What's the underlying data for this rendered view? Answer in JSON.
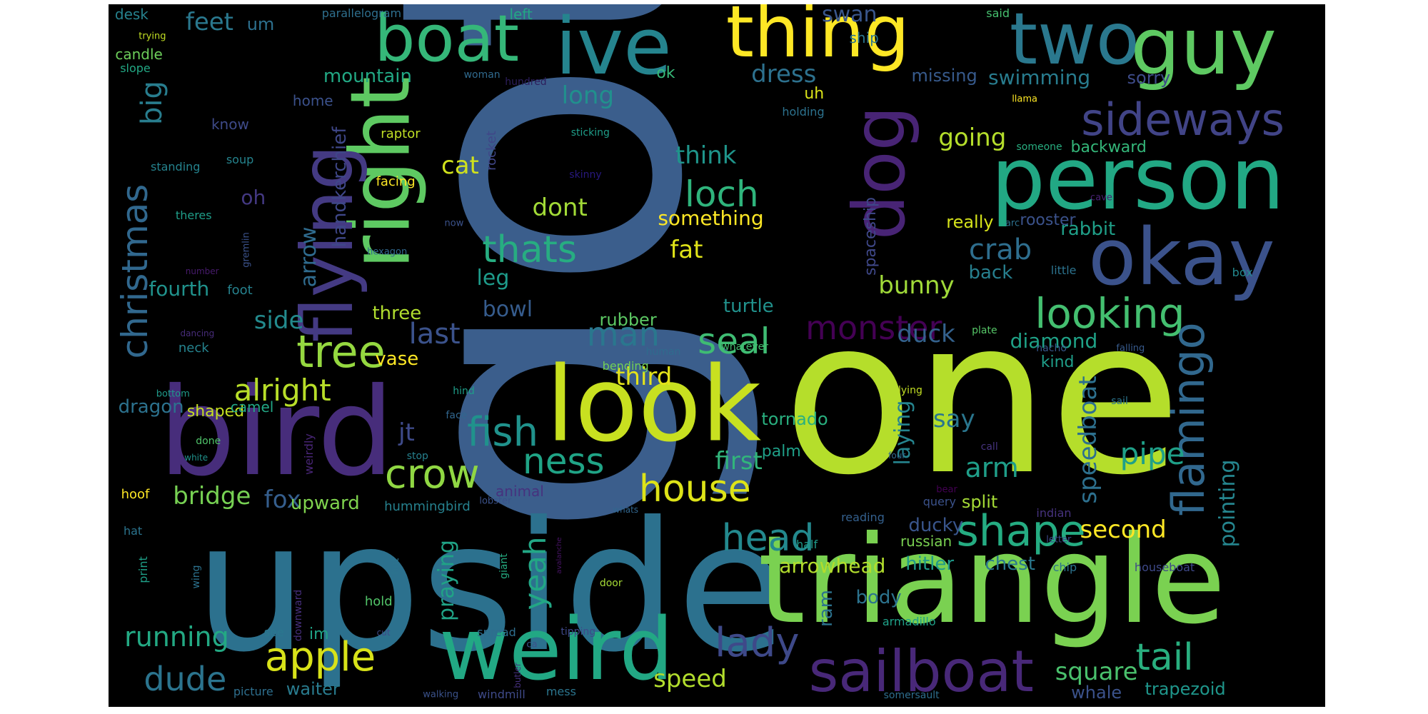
{
  "word_cloud": {
    "background": "#000000",
    "palette": [
      "#440154",
      "#472d7b",
      "#3b528b",
      "#2c728e",
      "#21918c",
      "#28ae80",
      "#5ec962",
      "#addc30",
      "#fde725"
    ],
    "words": [
      {
        "text": "got",
        "color": "#3b5e8c"
      },
      {
        "text": "one",
        "color": "#b5de2b"
      },
      {
        "text": "upside",
        "color": "#2c718e"
      },
      {
        "text": "triangle",
        "color": "#7ad151"
      },
      {
        "text": "bird",
        "color": "#472d7b"
      },
      {
        "text": "look",
        "color": "#c8e020"
      },
      {
        "text": "weird",
        "color": "#22a884"
      },
      {
        "text": "person",
        "color": "#22a884"
      },
      {
        "text": "two",
        "color": "#2a788e"
      },
      {
        "text": "guy",
        "color": "#5ec962"
      },
      {
        "text": "okay",
        "color": "#3b528b"
      },
      {
        "text": "boat",
        "color": "#35b779"
      },
      {
        "text": "ive",
        "color": "#25848e"
      },
      {
        "text": "thing",
        "color": "#fde725"
      },
      {
        "text": "right",
        "color": "#5ec962"
      },
      {
        "text": "flying",
        "color": "#443a83"
      },
      {
        "text": "dog",
        "color": "#482475"
      },
      {
        "text": "sailboat",
        "color": "#482878"
      },
      {
        "text": "sideways",
        "color": "#414487"
      },
      {
        "text": "flamingo",
        "color": "#31688e"
      },
      {
        "text": "looking",
        "color": "#44bf70"
      },
      {
        "text": "shape",
        "color": "#25ac82"
      },
      {
        "text": "monster",
        "color": "#440154"
      },
      {
        "text": "tree",
        "color": "#95d840"
      },
      {
        "text": "christmas",
        "color": "#31688e"
      },
      {
        "text": "crow",
        "color": "#90d743"
      },
      {
        "text": "fish",
        "color": "#20928c"
      },
      {
        "text": "apple",
        "color": "#d8e219"
      },
      {
        "text": "house",
        "color": "#dde318"
      },
      {
        "text": "loch",
        "color": "#2fb47c"
      },
      {
        "text": "thats",
        "color": "#27ad81"
      },
      {
        "text": "seal",
        "color": "#3fbc73"
      },
      {
        "text": "lady",
        "color": "#3e4989"
      },
      {
        "text": "head",
        "color": "#23898e"
      },
      {
        "text": "tail",
        "color": "#29af7f"
      },
      {
        "text": "ness",
        "color": "#20a486"
      },
      {
        "text": "man",
        "color": "#2a778e"
      },
      {
        "text": "dude",
        "color": "#2b748e"
      },
      {
        "text": "speedboat",
        "color": "#2d708e"
      },
      {
        "text": "alright",
        "color": "#b8de29"
      },
      {
        "text": "running",
        "color": "#23a983"
      },
      {
        "text": "yeah",
        "color": "#22a785"
      },
      {
        "text": "pipe",
        "color": "#1fa088"
      },
      {
        "text": "square",
        "color": "#4ac16d"
      },
      {
        "text": "big",
        "color": "#287d8e"
      },
      {
        "text": "dress",
        "color": "#2d718e"
      },
      {
        "text": "cat",
        "color": "#d0e11c"
      },
      {
        "text": "crab",
        "color": "#2e6e8e"
      },
      {
        "text": "speed",
        "color": "#b2dd2d"
      },
      {
        "text": "fat",
        "color": "#dfe318"
      },
      {
        "text": "duck",
        "color": "#34618d"
      },
      {
        "text": "arm",
        "color": "#1f9e89"
      },
      {
        "text": "second",
        "color": "#fde725"
      },
      {
        "text": "pointing",
        "color": "#25858e"
      },
      {
        "text": "last",
        "color": "#3b528b"
      },
      {
        "text": "bridge",
        "color": "#77d153"
      },
      {
        "text": "going",
        "color": "#b5de2b"
      },
      {
        "text": "feet",
        "color": "#2a788e"
      },
      {
        "text": "swan",
        "color": "#39568c"
      },
      {
        "text": "laying",
        "color": "#25848e"
      },
      {
        "text": "praying",
        "color": "#20a386"
      },
      {
        "text": "jt",
        "color": "#3e4a89"
      },
      {
        "text": "long",
        "color": "#21908d"
      },
      {
        "text": "first",
        "color": "#31b57b"
      },
      {
        "text": "third",
        "color": "#e5e419"
      },
      {
        "text": "dont",
        "color": "#a2da37"
      },
      {
        "text": "think",
        "color": "#1f958b"
      },
      {
        "text": "side",
        "color": "#238a8d"
      },
      {
        "text": "fox",
        "color": "#355e8d"
      },
      {
        "text": "bunny",
        "color": "#a0da39"
      },
      {
        "text": "bowl",
        "color": "#365c8d"
      },
      {
        "text": "swimming",
        "color": "#287c8e"
      },
      {
        "text": "arrowhead",
        "color": "#b2dd2d"
      },
      {
        "text": "say",
        "color": "#2a768e"
      },
      {
        "text": "diamond",
        "color": "#1fa287"
      },
      {
        "text": "fourth",
        "color": "#20928c"
      },
      {
        "text": "arrow",
        "color": "#2f6b8e"
      },
      {
        "text": "leg",
        "color": "#1e9b8a"
      },
      {
        "text": "three",
        "color": "#b0dd2f"
      },
      {
        "text": "something",
        "color": "#fde725"
      },
      {
        "text": "turtle",
        "color": "#21918c"
      },
      {
        "text": "oh",
        "color": "#443983"
      },
      {
        "text": "mountain",
        "color": "#22a884"
      },
      {
        "text": "back",
        "color": "#277f8e"
      },
      {
        "text": "rabbit",
        "color": "#1f9f88"
      },
      {
        "text": "dragon",
        "color": "#2c728e"
      },
      {
        "text": "vase",
        "color": "#fde725"
      },
      {
        "text": "upward",
        "color": "#7fd34e"
      },
      {
        "text": "body",
        "color": "#2c738e"
      },
      {
        "text": "handkerchief",
        "color": "#3f4788"
      },
      {
        "text": "rubber",
        "color": "#5cc863"
      },
      {
        "text": "tornado",
        "color": "#29af7f"
      },
      {
        "text": "chest",
        "color": "#2a788e"
      },
      {
        "text": "hitler",
        "color": "#1f9a8a"
      },
      {
        "text": "really",
        "color": "#d5e21a"
      },
      {
        "text": "split",
        "color": "#a5db36"
      },
      {
        "text": "whale",
        "color": "#3b528b"
      },
      {
        "text": "trapezoid",
        "color": "#1f968b"
      },
      {
        "text": "waiter",
        "color": "#297b8e"
      },
      {
        "text": "sorry",
        "color": "#3e4c8a"
      },
      {
        "text": "missing",
        "color": "#375a8c"
      },
      {
        "text": "ram",
        "color": "#2c728e"
      },
      {
        "text": "ducky",
        "color": "#39558c"
      },
      {
        "text": "palm",
        "color": "#1fa088"
      },
      {
        "text": "shaped",
        "color": "#c5e021"
      },
      {
        "text": "kind",
        "color": "#1f9e89"
      },
      {
        "text": "uh",
        "color": "#dae319"
      },
      {
        "text": "ok",
        "color": "#37b878"
      },
      {
        "text": "backward",
        "color": "#34b679"
      },
      {
        "text": "um",
        "color": "#2d708e"
      },
      {
        "text": "spaceship",
        "color": "#3f4889"
      },
      {
        "text": "rooster",
        "color": "#3b528b"
      },
      {
        "text": "im",
        "color": "#20a486"
      },
      {
        "text": "russian",
        "color": "#7ad151"
      },
      {
        "text": "camel",
        "color": "#22a785"
      },
      {
        "text": "know",
        "color": "#3e4a89"
      },
      {
        "text": "home",
        "color": "#3b518b"
      },
      {
        "text": "candle",
        "color": "#6ccd5a"
      },
      {
        "text": "desk",
        "color": "#26828e"
      },
      {
        "text": "left",
        "color": "#22a884"
      },
      {
        "text": "ship",
        "color": "#2b758e"
      },
      {
        "text": "hummingbird",
        "color": "#26818e"
      },
      {
        "text": "hoof",
        "color": "#fde725"
      },
      {
        "text": "facing",
        "color": "#fde725"
      },
      {
        "text": "raptor",
        "color": "#c0df25"
      },
      {
        "text": "soup",
        "color": "#25848e"
      },
      {
        "text": "standing",
        "color": "#25838e"
      },
      {
        "text": "theres",
        "color": "#1f9e89"
      },
      {
        "text": "foot",
        "color": "#26828e"
      },
      {
        "text": "neck",
        "color": "#25838e"
      },
      {
        "text": "parallelogram",
        "color": "#2e6f8e"
      },
      {
        "text": "slope",
        "color": "#22a884"
      },
      {
        "text": "trying",
        "color": "#c2df23"
      },
      {
        "text": "said",
        "color": "#46c06f"
      },
      {
        "text": "woman",
        "color": "#306a8e"
      },
      {
        "text": "hundred",
        "color": "#2d1e5c"
      },
      {
        "text": "llama",
        "color": "#fde725"
      },
      {
        "text": "sticking",
        "color": "#1f9e89"
      },
      {
        "text": "someone",
        "color": "#28ae80"
      },
      {
        "text": "holding",
        "color": "#2c728e"
      },
      {
        "text": "skinny",
        "color": "#27187e"
      },
      {
        "text": "rocket",
        "color": "#404688"
      },
      {
        "text": "now",
        "color": "#3b528b"
      },
      {
        "text": "cave",
        "color": "#482173"
      },
      {
        "text": "hexagon",
        "color": "#31688e"
      },
      {
        "text": "arc",
        "color": "#2d718e"
      },
      {
        "text": "little",
        "color": "#2c738e"
      },
      {
        "text": "box",
        "color": "#23888e"
      },
      {
        "text": "gremlin",
        "color": "#3b528b"
      },
      {
        "text": "number",
        "color": "#481b6d"
      },
      {
        "text": "dancing",
        "color": "#472c7a"
      },
      {
        "text": "human",
        "color": "#2f6b8e"
      },
      {
        "text": "whatever",
        "color": "#44bf70"
      },
      {
        "text": "nacho",
        "color": "#38588c"
      },
      {
        "text": "falling",
        "color": "#375a8c"
      },
      {
        "text": "plate",
        "color": "#56c667"
      },
      {
        "text": "bending",
        "color": "#73d056"
      },
      {
        "text": "lying",
        "color": "#c2df23"
      },
      {
        "text": "bottom",
        "color": "#1f9a8a"
      },
      {
        "text": "hind",
        "color": "#1f9e89"
      },
      {
        "text": "face",
        "color": "#31668e"
      },
      {
        "text": "sail",
        "color": "#2b758e"
      },
      {
        "text": "weirdly",
        "color": "#482576"
      },
      {
        "text": "done",
        "color": "#50c46a"
      },
      {
        "text": "white",
        "color": "#20928c"
      },
      {
        "text": "stop",
        "color": "#26818e"
      },
      {
        "text": "call",
        "color": "#46337e"
      },
      {
        "text": "four",
        "color": "#31688e"
      },
      {
        "text": "animal",
        "color": "#46327e"
      },
      {
        "text": "whats",
        "color": "#31668e"
      },
      {
        "text": "bear",
        "color": "#440154"
      },
      {
        "text": "lobster",
        "color": "#3b528b"
      },
      {
        "text": "query",
        "color": "#3b528b"
      },
      {
        "text": "indian",
        "color": "#46327e"
      },
      {
        "text": "reading",
        "color": "#34608d"
      },
      {
        "text": "hat",
        "color": "#2b748e"
      },
      {
        "text": "print",
        "color": "#1fa088"
      },
      {
        "text": "wing",
        "color": "#2c728e"
      },
      {
        "text": "downward",
        "color": "#472f7d"
      },
      {
        "text": "hot",
        "color": "#2c738e"
      },
      {
        "text": "giant",
        "color": "#25ac82"
      },
      {
        "text": "avalanche",
        "color": "#471365"
      },
      {
        "text": "door",
        "color": "#a5db36"
      },
      {
        "text": "butler",
        "color": "#46307e"
      },
      {
        "text": "half",
        "color": "#1f9a8a"
      },
      {
        "text": "letter",
        "color": "#3e4989"
      },
      {
        "text": "chip",
        "color": "#2c738e"
      },
      {
        "text": "houseboat",
        "color": "#3e4989"
      },
      {
        "text": "hold",
        "color": "#52c569"
      },
      {
        "text": "cut",
        "color": "#3e4a89"
      },
      {
        "text": "spread",
        "color": "#2e6e8e"
      },
      {
        "text": "ca",
        "color": "#3b528b"
      },
      {
        "text": "tipping",
        "color": "#3e4989"
      },
      {
        "text": "see",
        "color": "#2a788e"
      },
      {
        "text": "armadillo",
        "color": "#1fa188"
      },
      {
        "text": "picture",
        "color": "#2e6f8e"
      },
      {
        "text": "walking",
        "color": "#3b528b"
      },
      {
        "text": "windmill",
        "color": "#3e4a89"
      },
      {
        "text": "mess",
        "color": "#2b758e"
      },
      {
        "text": "somersault",
        "color": "#2e6e8e"
      }
    ]
  }
}
